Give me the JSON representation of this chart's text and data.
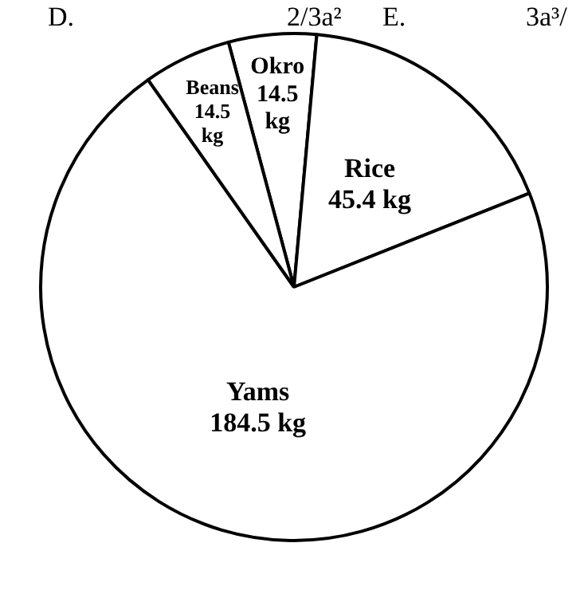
{
  "chart_data": {
    "type": "pie",
    "categories": [
      "Okro",
      "Rice",
      "Yams",
      "Beans"
    ],
    "values": [
      14.5,
      45.4,
      184.5,
      14.5
    ],
    "value_labels": [
      "14.5 kg",
      "45.4 kg",
      "184.5 kg",
      "14.5 kg"
    ],
    "colors": [
      "#ffffff",
      "#ffffff",
      "#ffffff",
      "#ffffff"
    ],
    "annotations": [
      "D.",
      "2/3a²",
      "E.",
      "3a³/"
    ]
  }
}
